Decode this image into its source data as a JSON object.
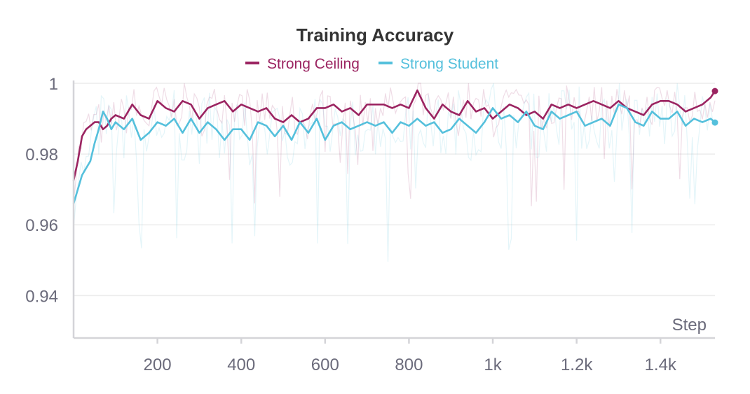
{
  "chart_data": {
    "type": "line",
    "title": "Training Accuracy",
    "xlabel": "Step",
    "ylabel": "",
    "xlim": [
      0,
      1530
    ],
    "ylim": [
      0.928,
      1.0
    ],
    "x_ticks": [
      {
        "value": 200,
        "label": "200"
      },
      {
        "value": 400,
        "label": "400"
      },
      {
        "value": 600,
        "label": "600"
      },
      {
        "value": 800,
        "label": "800"
      },
      {
        "value": 1000,
        "label": "1k"
      },
      {
        "value": 1200,
        "label": "1.2k"
      },
      {
        "value": 1400,
        "label": "1.4k"
      }
    ],
    "y_ticks": [
      {
        "value": 1.0,
        "label": "1"
      },
      {
        "value": 0.98,
        "label": "0.98"
      },
      {
        "value": 0.96,
        "label": "0.96"
      },
      {
        "value": 0.94,
        "label": "0.94"
      }
    ],
    "grid": true,
    "legend_position": "top-center",
    "series": [
      {
        "name": "Strong Ceiling",
        "color": "#9b2461",
        "x": [
          0,
          10,
          20,
          30,
          40,
          50,
          60,
          70,
          80,
          90,
          100,
          120,
          140,
          160,
          180,
          200,
          220,
          240,
          260,
          280,
          300,
          320,
          340,
          360,
          380,
          400,
          420,
          440,
          460,
          480,
          500,
          520,
          540,
          560,
          580,
          600,
          620,
          640,
          660,
          680,
          700,
          720,
          740,
          760,
          780,
          800,
          820,
          840,
          860,
          880,
          900,
          920,
          940,
          960,
          980,
          1000,
          1020,
          1040,
          1060,
          1080,
          1100,
          1120,
          1140,
          1160,
          1180,
          1200,
          1220,
          1240,
          1260,
          1280,
          1300,
          1320,
          1340,
          1360,
          1380,
          1400,
          1420,
          1440,
          1460,
          1480,
          1500,
          1520,
          1530
        ],
        "values": [
          0.9725,
          0.978,
          0.985,
          0.987,
          0.988,
          0.989,
          0.989,
          0.987,
          0.988,
          0.99,
          0.991,
          0.99,
          0.994,
          0.991,
          0.99,
          0.995,
          0.993,
          0.992,
          0.995,
          0.994,
          0.99,
          0.993,
          0.994,
          0.995,
          0.992,
          0.994,
          0.993,
          0.992,
          0.993,
          0.99,
          0.989,
          0.991,
          0.989,
          0.99,
          0.993,
          0.993,
          0.994,
          0.992,
          0.993,
          0.991,
          0.994,
          0.994,
          0.994,
          0.993,
          0.994,
          0.993,
          0.998,
          0.993,
          0.99,
          0.994,
          0.992,
          0.991,
          0.995,
          0.992,
          0.993,
          0.99,
          0.992,
          0.994,
          0.993,
          0.991,
          0.992,
          0.99,
          0.994,
          0.993,
          0.994,
          0.993,
          0.994,
          0.995,
          0.994,
          0.993,
          0.995,
          0.993,
          0.992,
          0.991,
          0.994,
          0.995,
          0.995,
          0.994,
          0.992,
          0.993,
          0.994,
          0.996,
          0.9978
        ]
      },
      {
        "name": "Strong Student",
        "color": "#55c0dc",
        "x": [
          0,
          10,
          20,
          30,
          40,
          50,
          60,
          70,
          80,
          90,
          100,
          120,
          140,
          160,
          180,
          200,
          220,
          240,
          260,
          280,
          300,
          320,
          340,
          360,
          380,
          400,
          420,
          440,
          460,
          480,
          500,
          520,
          540,
          560,
          580,
          600,
          620,
          640,
          660,
          680,
          700,
          720,
          740,
          760,
          780,
          800,
          820,
          840,
          860,
          880,
          900,
          920,
          940,
          960,
          980,
          1000,
          1020,
          1040,
          1060,
          1080,
          1100,
          1120,
          1140,
          1160,
          1180,
          1200,
          1220,
          1240,
          1260,
          1280,
          1300,
          1320,
          1340,
          1360,
          1380,
          1400,
          1420,
          1440,
          1460,
          1480,
          1500,
          1520,
          1530
        ],
        "values": [
          0.966,
          0.97,
          0.974,
          0.976,
          0.978,
          0.983,
          0.987,
          0.992,
          0.99,
          0.987,
          0.989,
          0.987,
          0.99,
          0.984,
          0.986,
          0.989,
          0.988,
          0.99,
          0.986,
          0.99,
          0.986,
          0.989,
          0.987,
          0.984,
          0.987,
          0.987,
          0.984,
          0.989,
          0.988,
          0.985,
          0.988,
          0.984,
          0.989,
          0.986,
          0.99,
          0.984,
          0.988,
          0.989,
          0.987,
          0.988,
          0.989,
          0.988,
          0.989,
          0.986,
          0.989,
          0.988,
          0.99,
          0.988,
          0.989,
          0.986,
          0.987,
          0.99,
          0.988,
          0.986,
          0.989,
          0.993,
          0.99,
          0.991,
          0.989,
          0.992,
          0.988,
          0.987,
          0.992,
          0.99,
          0.991,
          0.992,
          0.988,
          0.989,
          0.99,
          0.988,
          0.994,
          0.993,
          0.989,
          0.988,
          0.992,
          0.99,
          0.99,
          0.992,
          0.988,
          0.99,
          0.989,
          0.99,
          0.9889
        ]
      }
    ]
  }
}
